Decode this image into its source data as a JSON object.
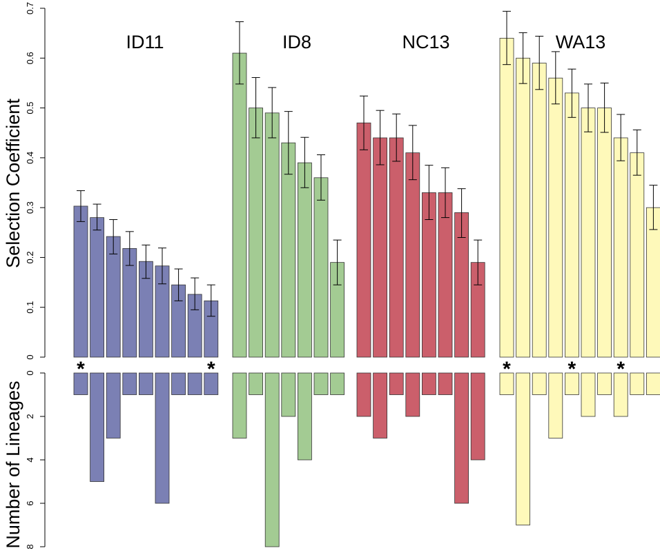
{
  "chart_data": {
    "type": "bar",
    "top_panel": {
      "ylabel": "Selection Coefficient",
      "ylim": [
        0,
        0.7
      ],
      "yticks": [
        "0",
        "0.1",
        "0.2",
        "0.3",
        "0.4",
        "0.5",
        "0.6",
        "0.7"
      ]
    },
    "bottom_panel": {
      "ylabel": "Number of Lineages",
      "ylim": [
        0,
        8
      ],
      "yticks": [
        "0",
        "2",
        "4",
        "6",
        "8"
      ],
      "inverted": true
    },
    "groups": [
      {
        "label": "ID11",
        "color": "#7B80B4",
        "values": [
          0.303,
          0.28,
          0.242,
          0.218,
          0.192,
          0.183,
          0.145,
          0.126,
          0.113
        ],
        "err_low": [
          0.272,
          0.255,
          0.207,
          0.184,
          0.158,
          0.147,
          0.113,
          0.095,
          0.082
        ],
        "err_high": [
          0.334,
          0.307,
          0.276,
          0.252,
          0.225,
          0.219,
          0.177,
          0.159,
          0.145
        ],
        "lineages": [
          1,
          5,
          3,
          1,
          1,
          6,
          1,
          1,
          1
        ],
        "stars": [
          true,
          false,
          false,
          false,
          false,
          false,
          false,
          false,
          true
        ]
      },
      {
        "label": "ID8",
        "color": "#A3CB93",
        "values": [
          0.61,
          0.5,
          0.49,
          0.43,
          0.39,
          0.36,
          0.19
        ],
        "err_low": [
          0.548,
          0.44,
          0.44,
          0.367,
          0.34,
          0.315,
          0.145
        ],
        "err_high": [
          0.673,
          0.561,
          0.541,
          0.493,
          0.441,
          0.406,
          0.235
        ],
        "lineages": [
          3,
          1,
          8,
          2,
          4,
          1,
          1
        ],
        "stars": [
          false,
          false,
          false,
          false,
          false,
          false,
          false
        ]
      },
      {
        "label": "NC13",
        "color": "#CB5F6B",
        "values": [
          0.47,
          0.44,
          0.44,
          0.41,
          0.33,
          0.33,
          0.29,
          0.19
        ],
        "err_low": [
          0.416,
          0.386,
          0.393,
          0.356,
          0.276,
          0.28,
          0.24,
          0.145
        ],
        "err_high": [
          0.524,
          0.495,
          0.488,
          0.465,
          0.385,
          0.38,
          0.338,
          0.235
        ],
        "lineages": [
          2,
          3,
          1,
          2,
          1,
          1,
          6,
          4
        ],
        "stars": [
          false,
          false,
          false,
          false,
          false,
          false,
          false,
          false
        ]
      },
      {
        "label": "WA13",
        "color": "#FEF9BA",
        "values": [
          0.64,
          0.6,
          0.59,
          0.56,
          0.53,
          0.5,
          0.5,
          0.44,
          0.41,
          0.3
        ],
        "err_low": [
          0.587,
          0.549,
          0.537,
          0.508,
          0.481,
          0.452,
          0.451,
          0.394,
          0.365,
          0.256
        ],
        "err_high": [
          0.694,
          0.651,
          0.644,
          0.613,
          0.578,
          0.548,
          0.55,
          0.487,
          0.456,
          0.345
        ],
        "lineages": [
          1,
          7,
          1,
          3,
          1,
          2,
          1,
          2,
          1,
          1
        ],
        "stars": [
          true,
          false,
          false,
          false,
          true,
          false,
          false,
          true,
          false,
          false
        ]
      }
    ],
    "grid": false,
    "legend": "none"
  },
  "star_symbol": "*"
}
